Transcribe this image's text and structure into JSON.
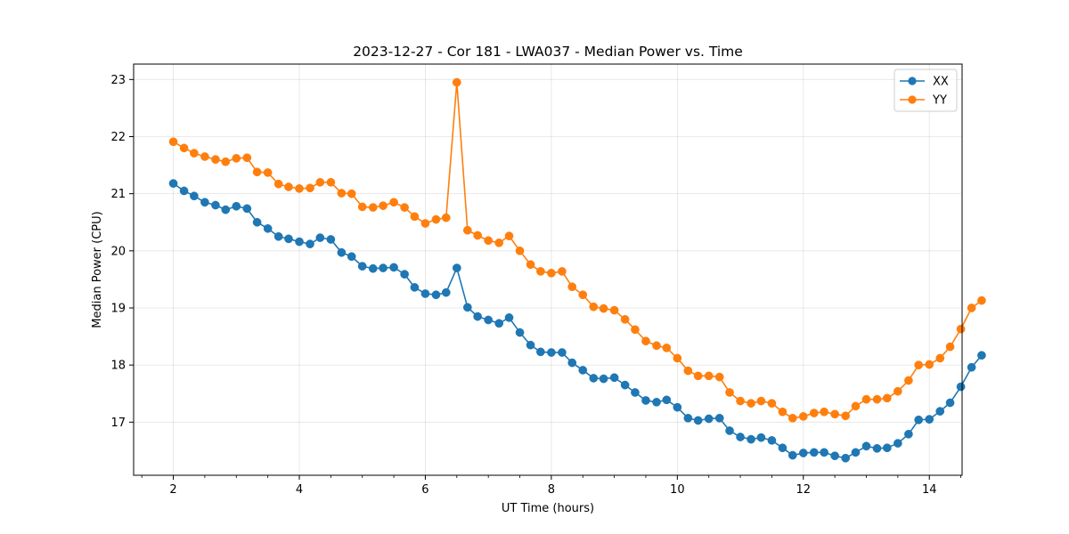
{
  "chart_data": {
    "type": "line",
    "title": "2023-12-27 - Cor 181 - LWA037 - Median Power vs. Time",
    "xlabel": "UT Time (hours)",
    "ylabel": "Median Power (CPU)",
    "xlim": [
      1.37,
      14.52
    ],
    "ylim": [
      16.07,
      23.27
    ],
    "xticks": [
      2,
      4,
      6,
      8,
      10,
      12,
      14
    ],
    "xticks_minor": [
      1.5,
      2.5,
      3,
      3.5,
      4.5,
      5,
      5.5,
      6.5,
      7,
      7.5,
      8.5,
      9,
      9.5,
      10.5,
      11,
      11.5,
      12.5,
      13,
      13.5,
      14.5
    ],
    "yticks": [
      17,
      18,
      19,
      20,
      21,
      22,
      23
    ],
    "grid": true,
    "legend_position": "upper right",
    "colors": {
      "XX": "#1f77b4",
      "YY": "#ff7f0e"
    },
    "x": [
      2.0,
      2.17,
      2.33,
      2.5,
      2.67,
      2.83,
      3.0,
      3.17,
      3.33,
      3.5,
      3.67,
      3.83,
      4.0,
      4.17,
      4.33,
      4.5,
      4.67,
      4.83,
      5.0,
      5.17,
      5.33,
      5.5,
      5.67,
      5.83,
      6.0,
      6.17,
      6.33,
      6.5,
      6.67,
      6.83,
      7.0,
      7.17,
      7.33,
      7.5,
      7.67,
      7.83,
      8.0,
      8.17,
      8.33,
      8.5,
      8.67,
      8.83,
      9.0,
      9.17,
      9.33,
      9.5,
      9.67,
      9.83,
      10.0,
      10.17,
      10.33,
      10.5,
      10.67,
      10.83,
      11.0,
      11.17,
      11.33,
      11.5,
      11.67,
      11.83,
      12.0,
      12.17,
      12.33,
      12.5,
      12.67,
      12.83,
      13.0,
      13.17,
      13.33,
      13.5,
      13.67,
      13.83,
      14.0,
      14.17,
      14.33,
      14.5,
      14.67,
      14.83
    ],
    "series": [
      {
        "name": "XX",
        "values": [
          21.18,
          21.05,
          20.96,
          20.85,
          20.8,
          20.72,
          20.78,
          20.74,
          20.5,
          20.39,
          20.25,
          20.21,
          20.16,
          20.12,
          20.23,
          20.2,
          19.97,
          19.9,
          19.73,
          19.69,
          19.7,
          19.71,
          19.59,
          19.36,
          19.25,
          19.23,
          19.27,
          19.7,
          19.01,
          18.85,
          18.79,
          18.73,
          18.83,
          18.57,
          18.35,
          18.23,
          18.22,
          18.22,
          18.04,
          17.91,
          17.77,
          17.76,
          17.78,
          17.65,
          17.52,
          17.38,
          17.35,
          17.39,
          17.26,
          17.07,
          17.03,
          17.06,
          17.07,
          16.85,
          16.74,
          16.7,
          16.73,
          16.68,
          16.55,
          16.42,
          16.46,
          16.47,
          16.47,
          16.41,
          16.37,
          16.47,
          16.58,
          16.54,
          16.55,
          16.63,
          16.79,
          17.04,
          17.05,
          17.19,
          17.34,
          17.62,
          17.96,
          18.17
        ]
      },
      {
        "name": "YY",
        "values": [
          21.91,
          21.8,
          21.71,
          21.65,
          21.6,
          21.56,
          21.62,
          21.63,
          21.38,
          21.37,
          21.17,
          21.12,
          21.09,
          21.1,
          21.2,
          21.2,
          21.01,
          21.0,
          20.77,
          20.76,
          20.79,
          20.85,
          20.76,
          20.6,
          20.48,
          20.55,
          20.58,
          22.95,
          20.36,
          20.27,
          20.18,
          20.14,
          20.26,
          20.0,
          19.76,
          19.64,
          19.61,
          19.64,
          19.37,
          19.23,
          19.02,
          18.99,
          18.96,
          18.8,
          18.62,
          18.42,
          18.34,
          18.3,
          18.12,
          17.9,
          17.81,
          17.81,
          17.79,
          17.52,
          17.37,
          17.33,
          17.37,
          17.33,
          17.18,
          17.07,
          17.1,
          17.16,
          17.18,
          17.14,
          17.11,
          17.28,
          17.4,
          17.4,
          17.42,
          17.54,
          17.73,
          18.0,
          18.01,
          18.12,
          18.32,
          18.63,
          19.0,
          19.13
        ]
      }
    ]
  }
}
